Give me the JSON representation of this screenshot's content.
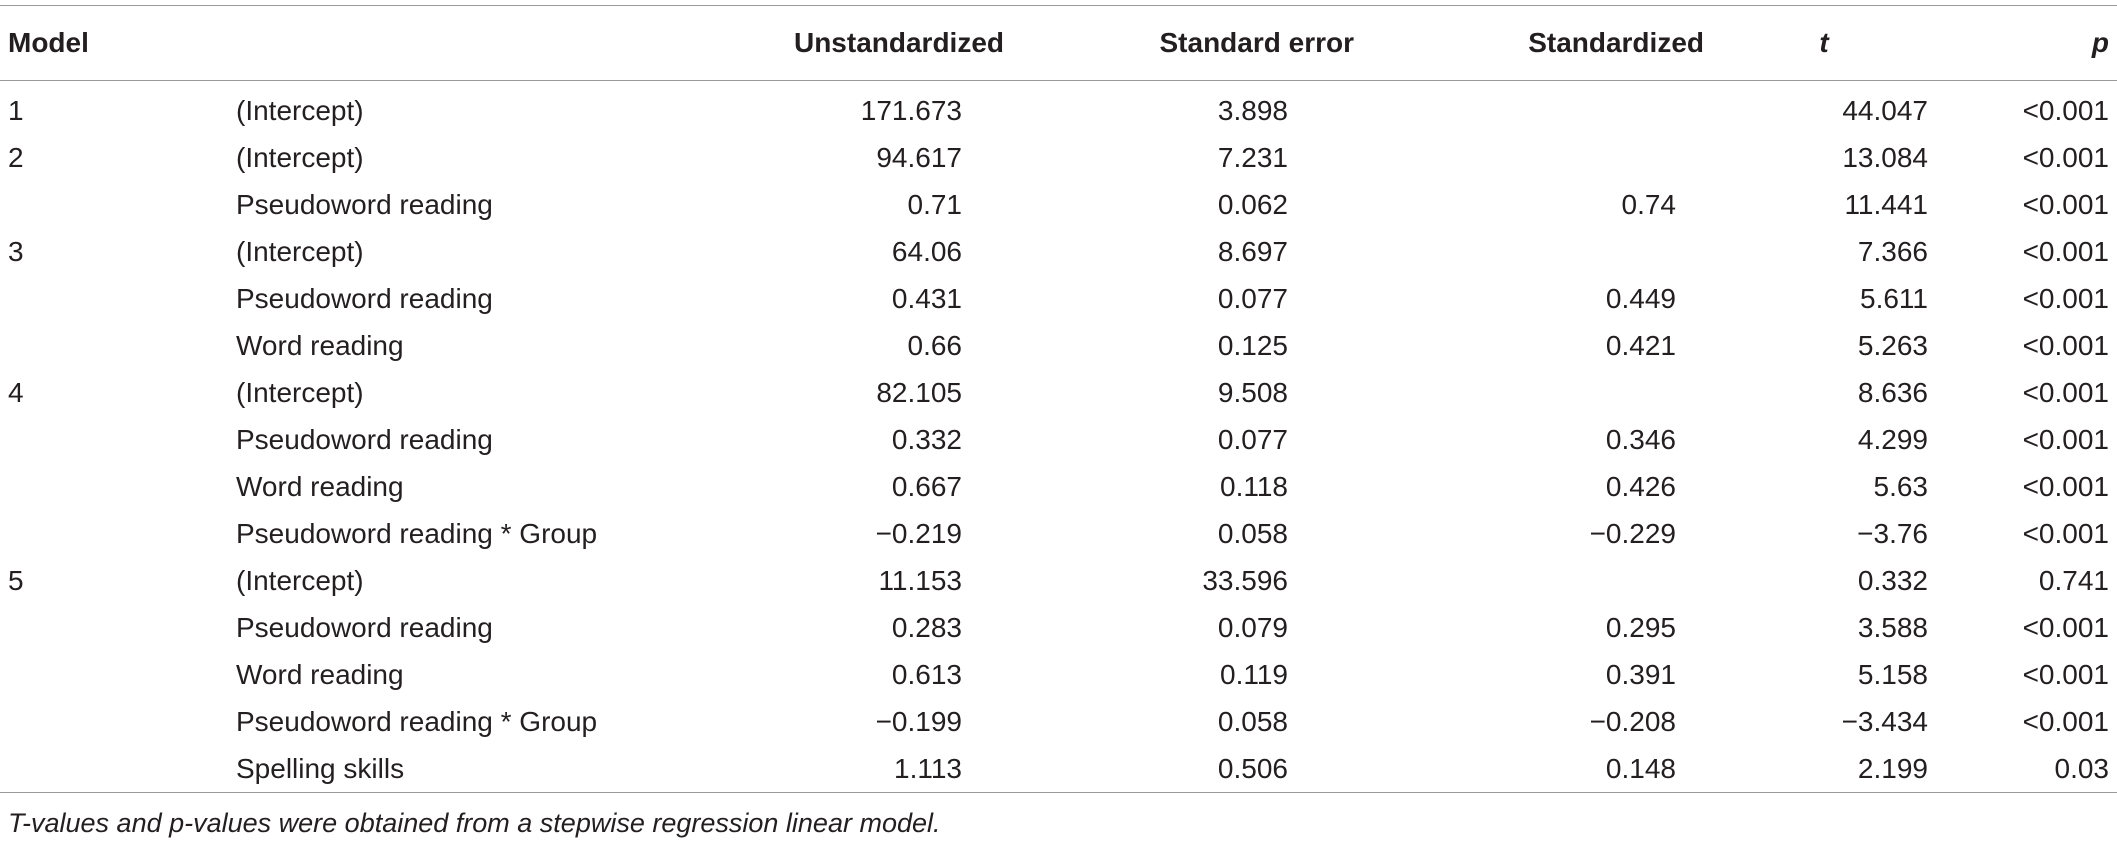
{
  "headers": {
    "model": "Model",
    "term": "",
    "unstandardized": "Unstandardized",
    "standard_error": "Standard error",
    "standardized": "Standardized",
    "t": "t",
    "p": "p"
  },
  "rows": [
    {
      "model": "1",
      "term": "(Intercept)",
      "unstandardized": "171.673",
      "standard_error": "3.898",
      "standardized": "",
      "t": "44.047",
      "p": "<0.001"
    },
    {
      "model": "2",
      "term": "(Intercept)",
      "unstandardized": "94.617",
      "standard_error": "7.231",
      "standardized": "",
      "t": "13.084",
      "p": "<0.001"
    },
    {
      "model": "",
      "term": "Pseudoword reading",
      "unstandardized": "0.71",
      "standard_error": "0.062",
      "standardized": "0.74",
      "t": "11.441",
      "p": "<0.001"
    },
    {
      "model": "3",
      "term": "(Intercept)",
      "unstandardized": "64.06",
      "standard_error": "8.697",
      "standardized": "",
      "t": "7.366",
      "p": "<0.001"
    },
    {
      "model": "",
      "term": "Pseudoword reading",
      "unstandardized": "0.431",
      "standard_error": "0.077",
      "standardized": "0.449",
      "t": "5.611",
      "p": "<0.001"
    },
    {
      "model": "",
      "term": "Word reading",
      "unstandardized": "0.66",
      "standard_error": "0.125",
      "standardized": "0.421",
      "t": "5.263",
      "p": "<0.001"
    },
    {
      "model": "4",
      "term": "(Intercept)",
      "unstandardized": "82.105",
      "standard_error": "9.508",
      "standardized": "",
      "t": "8.636",
      "p": "<0.001"
    },
    {
      "model": "",
      "term": "Pseudoword reading",
      "unstandardized": "0.332",
      "standard_error": "0.077",
      "standardized": "0.346",
      "t": "4.299",
      "p": "<0.001"
    },
    {
      "model": "",
      "term": "Word reading",
      "unstandardized": "0.667",
      "standard_error": "0.118",
      "standardized": "0.426",
      "t": "5.63",
      "p": "<0.001"
    },
    {
      "model": "",
      "term": "Pseudoword reading * Group",
      "unstandardized": "−0.219",
      "standard_error": "0.058",
      "standardized": "−0.229",
      "t": "−3.76",
      "p": "<0.001"
    },
    {
      "model": "5",
      "term": "(Intercept)",
      "unstandardized": "11.153",
      "standard_error": "33.596",
      "standardized": "",
      "t": "0.332",
      "p": "0.741"
    },
    {
      "model": "",
      "term": "Pseudoword reading",
      "unstandardized": "0.283",
      "standard_error": "0.079",
      "standardized": "0.295",
      "t": "3.588",
      "p": "<0.001"
    },
    {
      "model": "",
      "term": "Word reading",
      "unstandardized": "0.613",
      "standard_error": "0.119",
      "standardized": "0.391",
      "t": "5.158",
      "p": "<0.001"
    },
    {
      "model": "",
      "term": "Pseudoword reading * Group",
      "unstandardized": "−0.199",
      "standard_error": "0.058",
      "standardized": "−0.208",
      "t": "−3.434",
      "p": "<0.001"
    },
    {
      "model": "",
      "term": "Spelling skills",
      "unstandardized": "1.113",
      "standard_error": "0.506",
      "standardized": "0.148",
      "t": "2.199",
      "p": "0.03"
    }
  ],
  "footnote": "T-values and p-values were obtained from a stepwise regression linear model."
}
